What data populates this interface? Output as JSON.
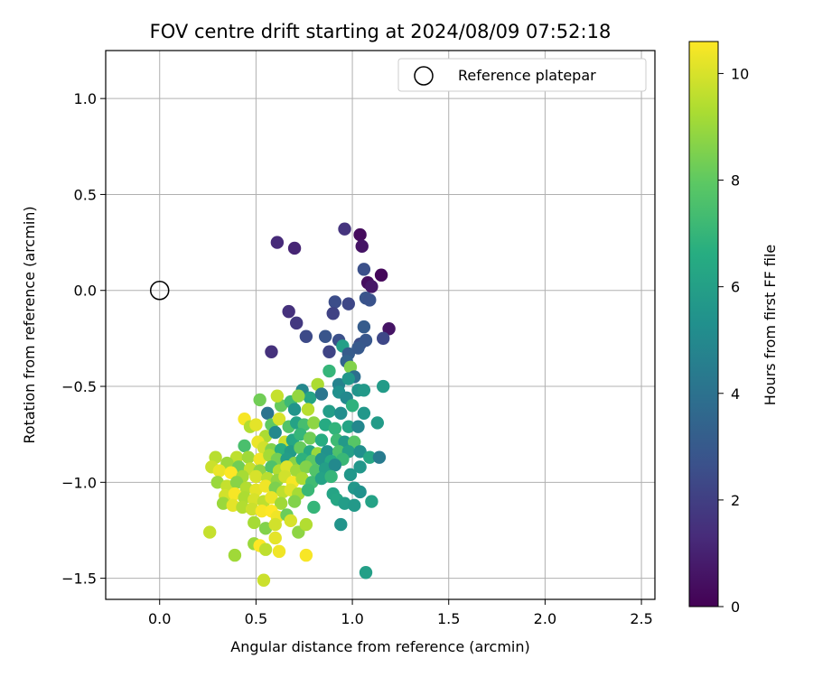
{
  "chart_data": {
    "type": "scatter",
    "title": "FOV centre drift starting at 2024/08/09 07:52:18",
    "xlabel": "Angular distance from reference (arcmin)",
    "ylabel": "Rotation from reference (arcmin)",
    "xlim": [
      -0.28,
      2.57
    ],
    "ylim": [
      -1.61,
      1.25
    ],
    "xticks": [
      0.0,
      0.5,
      1.0,
      1.5,
      2.0,
      2.5
    ],
    "xtick_labels": [
      "0.0",
      "0.5",
      "1.0",
      "1.5",
      "2.0",
      "2.5"
    ],
    "yticks": [
      -1.5,
      -1.0,
      -0.5,
      0.0,
      0.5,
      1.0
    ],
    "ytick_labels": [
      "−1.5",
      "−1.0",
      "−0.5",
      "0.0",
      "0.5",
      "1.0"
    ],
    "grid": true,
    "legend": {
      "position": "upper-right",
      "entries": [
        "Reference platepar"
      ]
    },
    "reference_point": {
      "x": 0.0,
      "y": 0.0
    },
    "colorbar": {
      "label": "Hours from first FF file",
      "colormap": "viridis",
      "range": [
        0,
        10.6
      ],
      "ticks": [
        0,
        2,
        4,
        6,
        8,
        10
      ],
      "tick_labels": [
        "0",
        "2",
        "4",
        "6",
        "8",
        "10"
      ]
    },
    "series": [
      {
        "columns": [
          "x",
          "y",
          "hours"
        ],
        "points": [
          [
            0.61,
            0.25,
            1.3
          ],
          [
            0.7,
            0.22,
            1.1
          ],
          [
            0.96,
            0.32,
            1.6
          ],
          [
            1.04,
            0.29,
            0.3
          ],
          [
            1.05,
            0.23,
            0.6
          ],
          [
            1.06,
            0.11,
            2.6
          ],
          [
            1.08,
            0.04,
            0.4
          ],
          [
            1.1,
            0.02,
            0.7
          ],
          [
            1.15,
            0.08,
            0.2
          ],
          [
            1.07,
            -0.04,
            2.8
          ],
          [
            1.09,
            -0.05,
            2.7
          ],
          [
            0.98,
            -0.07,
            2.3
          ],
          [
            0.91,
            -0.06,
            2.5
          ],
          [
            0.67,
            -0.11,
            1.5
          ],
          [
            0.71,
            -0.17,
            1.8
          ],
          [
            0.9,
            -0.12,
            2.1
          ],
          [
            1.06,
            -0.19,
            3.1
          ],
          [
            1.19,
            -0.2,
            0.6
          ],
          [
            0.76,
            -0.24,
            2.4
          ],
          [
            0.86,
            -0.24,
            2.8
          ],
          [
            0.93,
            -0.26,
            2.6
          ],
          [
            1.04,
            -0.28,
            2.5
          ],
          [
            1.07,
            -0.26,
            2.9
          ],
          [
            1.16,
            -0.25,
            2.3
          ],
          [
            0.58,
            -0.32,
            1.5
          ],
          [
            0.88,
            -0.32,
            2.2
          ],
          [
            0.95,
            -0.29,
            6.0
          ],
          [
            0.98,
            -0.33,
            3.1
          ],
          [
            1.03,
            -0.3,
            3.0
          ],
          [
            0.97,
            -0.37,
            3.4
          ],
          [
            0.99,
            -0.4,
            8.6
          ],
          [
            0.88,
            -0.42,
            7.0
          ],
          [
            1.01,
            -0.45,
            3.9
          ],
          [
            0.82,
            -0.49,
            9.3
          ],
          [
            0.93,
            -0.49,
            4.7
          ],
          [
            0.98,
            -0.46,
            5.6
          ],
          [
            1.03,
            -0.52,
            5.5
          ],
          [
            1.06,
            -0.52,
            5.7
          ],
          [
            1.16,
            -0.5,
            5.8
          ],
          [
            0.74,
            -0.52,
            4.9
          ],
          [
            0.78,
            -0.56,
            6.2
          ],
          [
            0.84,
            -0.54,
            4.2
          ],
          [
            0.93,
            -0.53,
            5.3
          ],
          [
            0.97,
            -0.56,
            5.0
          ],
          [
            1.0,
            -0.6,
            6.8
          ],
          [
            0.63,
            -0.6,
            8.1
          ],
          [
            0.68,
            -0.58,
            7.2
          ],
          [
            0.72,
            -0.55,
            8.9
          ],
          [
            0.52,
            -0.57,
            8.3
          ],
          [
            0.61,
            -0.55,
            9.7
          ],
          [
            0.7,
            -0.62,
            5.5
          ],
          [
            0.77,
            -0.62,
            9.5
          ],
          [
            0.88,
            -0.63,
            5.9
          ],
          [
            0.94,
            -0.64,
            5.2
          ],
          [
            1.06,
            -0.64,
            5.6
          ],
          [
            1.13,
            -0.69,
            5.8
          ],
          [
            0.56,
            -0.64,
            4.1
          ],
          [
            0.58,
            -0.7,
            8.0
          ],
          [
            0.62,
            -0.67,
            10.0
          ],
          [
            0.67,
            -0.71,
            7.7
          ],
          [
            0.71,
            -0.69,
            6.1
          ],
          [
            0.75,
            -0.7,
            7.4
          ],
          [
            0.8,
            -0.69,
            8.8
          ],
          [
            0.86,
            -0.7,
            6.5
          ],
          [
            0.91,
            -0.72,
            6.9
          ],
          [
            0.98,
            -0.71,
            6.2
          ],
          [
            1.03,
            -0.71,
            4.9
          ],
          [
            0.44,
            -0.67,
            10.5
          ],
          [
            0.47,
            -0.71,
            9.4
          ],
          [
            0.5,
            -0.7,
            10.2
          ],
          [
            0.55,
            -0.76,
            9.3
          ],
          [
            0.6,
            -0.74,
            5.0
          ],
          [
            0.65,
            -0.79,
            9.8
          ],
          [
            0.69,
            -0.78,
            6.3
          ],
          [
            0.73,
            -0.75,
            7.0
          ],
          [
            0.78,
            -0.77,
            8.3
          ],
          [
            0.84,
            -0.78,
            6.6
          ],
          [
            0.92,
            -0.78,
            7.2
          ],
          [
            0.96,
            -0.79,
            5.7
          ],
          [
            1.01,
            -0.79,
            7.8
          ],
          [
            0.44,
            -0.81,
            7.5
          ],
          [
            0.51,
            -0.79,
            10.3
          ],
          [
            0.54,
            -0.82,
            9.9
          ],
          [
            0.58,
            -0.83,
            8.6
          ],
          [
            0.63,
            -0.83,
            6.7
          ],
          [
            0.68,
            -0.84,
            5.8
          ],
          [
            0.73,
            -0.82,
            8.1
          ],
          [
            0.78,
            -0.84,
            6.4
          ],
          [
            0.82,
            -0.85,
            9.0
          ],
          [
            0.87,
            -0.84,
            5.4
          ],
          [
            0.93,
            -0.84,
            7.6
          ],
          [
            0.98,
            -0.84,
            6.0
          ],
          [
            1.04,
            -0.84,
            5.3
          ],
          [
            0.4,
            -0.87,
            9.6
          ],
          [
            0.46,
            -0.87,
            9.1
          ],
          [
            0.52,
            -0.88,
            10.4
          ],
          [
            0.57,
            -0.86,
            9.2
          ],
          [
            0.61,
            -0.88,
            8.4
          ],
          [
            0.66,
            -0.88,
            5.9
          ],
          [
            0.7,
            -0.9,
            8.7
          ],
          [
            0.74,
            -0.88,
            6.8
          ],
          [
            0.79,
            -0.89,
            7.9
          ],
          [
            0.84,
            -0.88,
            5.5
          ],
          [
            0.89,
            -0.89,
            6.5
          ],
          [
            0.95,
            -0.88,
            7.1
          ],
          [
            1.09,
            -0.87,
            6.3
          ],
          [
            1.14,
            -0.87,
            4.4
          ],
          [
            0.29,
            -0.87,
            9.5
          ],
          [
            0.35,
            -0.9,
            9.0
          ],
          [
            0.41,
            -0.92,
            8.3
          ],
          [
            0.47,
            -0.93,
            9.7
          ],
          [
            0.52,
            -0.94,
            8.8
          ],
          [
            0.58,
            -0.92,
            7.6
          ],
          [
            0.62,
            -0.94,
            9.4
          ],
          [
            0.66,
            -0.92,
            10.1
          ],
          [
            0.71,
            -0.94,
            9.1
          ],
          [
            0.76,
            -0.92,
            8.6
          ],
          [
            0.81,
            -0.94,
            7.7
          ],
          [
            0.86,
            -0.93,
            6.0
          ],
          [
            0.91,
            -0.91,
            5.0
          ],
          [
            1.04,
            -0.92,
            5.6
          ],
          [
            0.27,
            -0.92,
            9.8
          ],
          [
            0.31,
            -0.94,
            10.3
          ],
          [
            0.37,
            -0.95,
            10.6
          ],
          [
            0.43,
            -0.97,
            9.2
          ],
          [
            0.5,
            -0.97,
            10.0
          ],
          [
            0.56,
            -0.98,
            9.5
          ],
          [
            0.61,
            -0.99,
            8.9
          ],
          [
            0.65,
            -0.97,
            9.9
          ],
          [
            0.69,
            -1.0,
            10.5
          ],
          [
            0.74,
            -0.98,
            9.3
          ],
          [
            0.79,
            -1.0,
            7.3
          ],
          [
            0.84,
            -0.98,
            6.1
          ],
          [
            0.89,
            -0.97,
            7.0
          ],
          [
            0.99,
            -0.96,
            5.6
          ],
          [
            0.3,
            -1.0,
            9.0
          ],
          [
            0.35,
            -1.02,
            9.7
          ],
          [
            0.4,
            -1.0,
            8.7
          ],
          [
            0.45,
            -1.03,
            9.4
          ],
          [
            0.5,
            -1.04,
            10.2
          ],
          [
            0.55,
            -1.02,
            10.4
          ],
          [
            0.6,
            -1.03,
            8.5
          ],
          [
            0.64,
            -1.05,
            9.6
          ],
          [
            0.68,
            -1.04,
            10.1
          ],
          [
            0.72,
            -1.06,
            9.2
          ],
          [
            0.77,
            -1.04,
            7.1
          ],
          [
            1.01,
            -1.03,
            5.6
          ],
          [
            1.04,
            -1.05,
            5.4
          ],
          [
            0.34,
            -1.07,
            9.9
          ],
          [
            0.39,
            -1.06,
            10.5
          ],
          [
            0.44,
            -1.08,
            9.3
          ],
          [
            0.49,
            -1.09,
            10.0
          ],
          [
            0.54,
            -1.1,
            9.6
          ],
          [
            0.58,
            -1.08,
            10.3
          ],
          [
            0.63,
            -1.11,
            9.1
          ],
          [
            0.7,
            -1.1,
            8.6
          ],
          [
            0.9,
            -1.06,
            6.2
          ],
          [
            0.92,
            -1.09,
            6.3
          ],
          [
            0.96,
            -1.11,
            5.9
          ],
          [
            1.01,
            -1.12,
            5.7
          ],
          [
            1.1,
            -1.1,
            6.1
          ],
          [
            0.33,
            -1.11,
            9.0
          ],
          [
            0.38,
            -1.12,
            10.2
          ],
          [
            0.43,
            -1.13,
            9.4
          ],
          [
            0.48,
            -1.14,
            9.8
          ],
          [
            0.53,
            -1.15,
            10.5
          ],
          [
            0.58,
            -1.15,
            10.6
          ],
          [
            0.61,
            -1.18,
            10.4
          ],
          [
            0.66,
            -1.17,
            8.2
          ],
          [
            0.8,
            -1.13,
            7.0
          ],
          [
            0.49,
            -1.21,
            9.2
          ],
          [
            0.55,
            -1.24,
            8.6
          ],
          [
            0.6,
            -1.22,
            9.9
          ],
          [
            0.68,
            -1.2,
            10.0
          ],
          [
            0.72,
            -1.26,
            8.8
          ],
          [
            0.76,
            -1.22,
            9.4
          ],
          [
            0.94,
            -1.22,
            5.5
          ],
          [
            0.26,
            -1.26,
            9.7
          ],
          [
            0.49,
            -1.32,
            9.0
          ],
          [
            0.52,
            -1.33,
            10.6
          ],
          [
            0.55,
            -1.35,
            9.6
          ],
          [
            0.6,
            -1.29,
            10.2
          ],
          [
            0.62,
            -1.36,
            10.4
          ],
          [
            0.39,
            -1.38,
            9.1
          ],
          [
            0.76,
            -1.38,
            10.5
          ],
          [
            0.54,
            -1.51,
            9.8
          ],
          [
            1.07,
            -1.47,
            6.0
          ]
        ]
      }
    ]
  }
}
